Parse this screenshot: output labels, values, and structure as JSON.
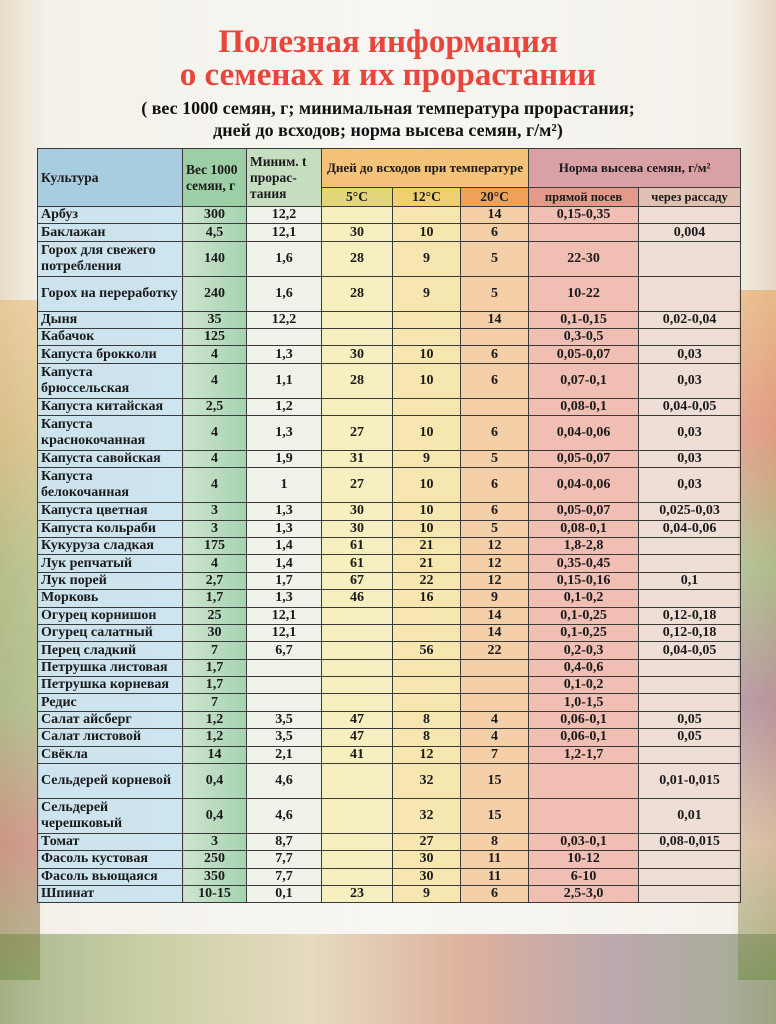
{
  "title": {
    "line1": "Полезная информация",
    "line2": "о семенах и их прорастании"
  },
  "subtitle": {
    "line1": "( вес 1000 семян, г; минимальная температура прорастания;",
    "line2": "дней до всходов; норма высева семян, г/м²)"
  },
  "table": {
    "headers": {
      "crop": "Культура",
      "weight": "Вес 1000 семян, г",
      "min_t": "Миним. t прорас-тания",
      "days": "Дней до всходов при температуре",
      "t5": "5°C",
      "t12": "12°C",
      "t20": "20°C",
      "norm": "Норма высева семян, г/м²",
      "direct": "прямой посев",
      "seedling": "через рассаду"
    },
    "rows": [
      [
        "Арбуз",
        "300",
        "12,2",
        "",
        "",
        "14",
        "0,15-0,35",
        ""
      ],
      [
        "Баклажан",
        "4,5",
        "12,1",
        "30",
        "10",
        "6",
        "",
        "0,004"
      ],
      [
        "Горох для свежего потребления",
        "140",
        "1,6",
        "28",
        "9",
        "5",
        "22-30",
        ""
      ],
      [
        "Горох на переработку",
        "240",
        "1,6",
        "28",
        "9",
        "5",
        "10-22",
        ""
      ],
      [
        "Дыня",
        "35",
        "12,2",
        "",
        "",
        "14",
        "0,1-0,15",
        "0,02-0,04"
      ],
      [
        "Кабачок",
        "125",
        "",
        "",
        "",
        "",
        "0,3-0,5",
        ""
      ],
      [
        "Капуста брокколи",
        "4",
        "1,3",
        "30",
        "10",
        "6",
        "0,05-0,07",
        "0,03"
      ],
      [
        "Капуста брюссельская",
        "4",
        "1,1",
        "28",
        "10",
        "6",
        "0,07-0,1",
        "0,03"
      ],
      [
        "Капуста китайская",
        "2,5",
        "1,2",
        "",
        "",
        "",
        "0,08-0,1",
        "0,04-0,05"
      ],
      [
        "Капуста краснокочанная",
        "4",
        "1,3",
        "27",
        "10",
        "6",
        "0,04-0,06",
        "0,03"
      ],
      [
        "Капуста савойская",
        "4",
        "1,9",
        "31",
        "9",
        "5",
        "0,05-0,07",
        "0,03"
      ],
      [
        "Капуста белокочанная",
        "4",
        "1",
        "27",
        "10",
        "6",
        "0,04-0,06",
        "0,03"
      ],
      [
        "Капуста цветная",
        "3",
        "1,3",
        "30",
        "10",
        "6",
        "0,05-0,07",
        "0,025-0,03"
      ],
      [
        "Капуста кольраби",
        "3",
        "1,3",
        "30",
        "10",
        "5",
        "0,08-0,1",
        "0,04-0,06"
      ],
      [
        "Кукуруза сладкая",
        "175",
        "1,4",
        "61",
        "21",
        "12",
        "1,8-2,8",
        ""
      ],
      [
        "Лук репчатый",
        "4",
        "1,4",
        "61",
        "21",
        "12",
        "0,35-0,45",
        ""
      ],
      [
        "Лук порей",
        "2,7",
        "1,7",
        "67",
        "22",
        "12",
        "0,15-0,16",
        "0,1"
      ],
      [
        "Морковь",
        "1,7",
        "1,3",
        "46",
        "16",
        "9",
        "0,1-0,2",
        ""
      ],
      [
        "Огурец корнишон",
        "25",
        "12,1",
        "",
        "",
        "14",
        "0,1-0,25",
        "0,12-0,18"
      ],
      [
        "Огурец салатный",
        "30",
        "12,1",
        "",
        "",
        "14",
        "0,1-0,25",
        "0,12-0,18"
      ],
      [
        "Перец сладкий",
        "7",
        "6,7",
        "",
        "56",
        "22",
        "0,2-0,3",
        "0,04-0,05"
      ],
      [
        "Петрушка листовая",
        "1,7",
        "",
        "",
        "",
        "",
        "0,4-0,6",
        ""
      ],
      [
        "Петрушка корневая",
        "1,7",
        "",
        "",
        "",
        "",
        "0,1-0,2",
        ""
      ],
      [
        "Редис",
        "7",
        "",
        "",
        "",
        "",
        "1,0-1,5",
        ""
      ],
      [
        "Салат айсберг",
        "1,2",
        "3,5",
        "47",
        "8",
        "4",
        "0,06-0,1",
        "0,05"
      ],
      [
        "Салат листовой",
        "1,2",
        "3,5",
        "47",
        "8",
        "4",
        "0,06-0,1",
        "0,05"
      ],
      [
        "Свёкла",
        "14",
        "2,1",
        "41",
        "12",
        "7",
        "1,2-1,7",
        ""
      ],
      [
        "Сельдерей корневой",
        "0,4",
        "4,6",
        "",
        "32",
        "15",
        "",
        "0,01-0,015"
      ],
      [
        "Сельдерей черешковый",
        "0,4",
        "4,6",
        "",
        "32",
        "15",
        "",
        "0,01"
      ],
      [
        "Томат",
        "3",
        "8,7",
        "",
        "27",
        "8",
        "0,03-0,1",
        "0,08-0,015"
      ],
      [
        "Фасоль кустовая",
        "250",
        "7,7",
        "",
        "30",
        "11",
        "10-12",
        ""
      ],
      [
        "Фасоль вьющаяся",
        "350",
        "7,7",
        "",
        "30",
        "11",
        "6-10",
        ""
      ],
      [
        "Шпинат",
        "10-15",
        "0,1",
        "23",
        "9",
        "6",
        "2,5-3,0",
        ""
      ]
    ]
  },
  "colors": {
    "title": "#e8453c"
  }
}
